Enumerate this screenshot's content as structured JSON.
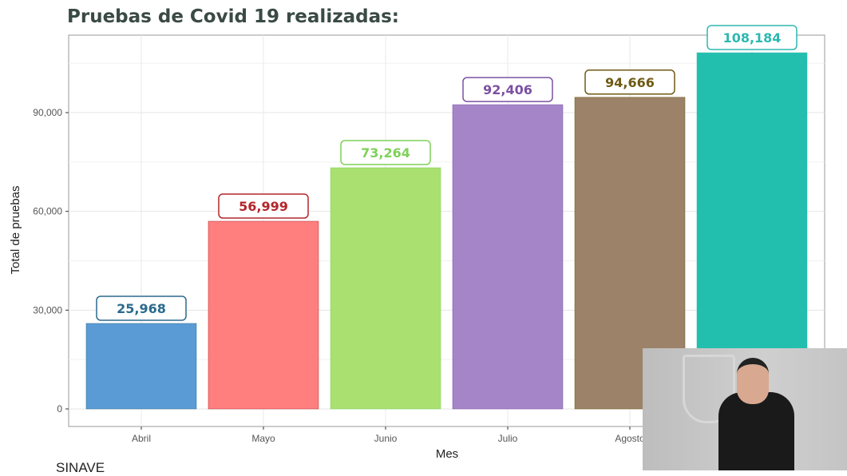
{
  "chart_data": {
    "type": "bar",
    "title": "Pruebas de Covid 19 realizadas:",
    "xlabel": "Mes",
    "ylabel": "Total de pruebas",
    "categories": [
      "Abril",
      "Mayo",
      "Junio",
      "Julio",
      "Agosto",
      ""
    ],
    "values": [
      25968,
      56999,
      73264,
      92406,
      94666,
      108184
    ],
    "value_labels": [
      "25,968",
      "56,999",
      "73,264",
      "92,406",
      "94,666",
      "108,184"
    ],
    "ylim": [
      0,
      113500
    ],
    "yticks": [
      0,
      30000,
      60000,
      90000
    ],
    "ytick_labels": [
      "0",
      "30,000",
      "60,000",
      "90,000"
    ],
    "grid": true,
    "colors": [
      "#5b9bd5",
      "#ff7f7f",
      "#a9e070",
      "#a585c8",
      "#9c8268",
      "#22bfae"
    ],
    "label_colors": [
      "#2b6a8e",
      "#b3262b",
      "#7fd158",
      "#7c50a3",
      "#6e5a14",
      "#2db8b1"
    ]
  },
  "source": "SINAVE",
  "overlay": {
    "description_icon": "sign-language-interpreter-video"
  }
}
